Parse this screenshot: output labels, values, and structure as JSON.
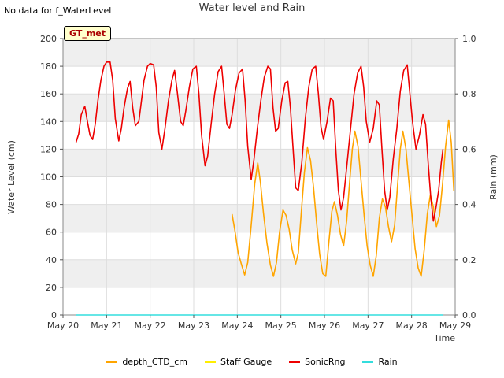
{
  "header": {
    "no_data_note": "No data for f_WaterLevel",
    "badge": "GT_met"
  },
  "chart_data": {
    "type": "line",
    "title": "Water level and Rain",
    "xlabel": "Time",
    "ylabel_left": "Water Level (cm)",
    "ylabel_right": "Rain (mm)",
    "x_ticks": [
      "May 20",
      "May 21",
      "May 22",
      "May 23",
      "May 24",
      "May 25",
      "May 26",
      "May 27",
      "May 28",
      "May 29"
    ],
    "xlim": [
      0,
      9
    ],
    "ylim_left": [
      0,
      200
    ],
    "ylim_right": [
      0,
      1.0
    ],
    "y_ticks_left": [
      "0",
      "20",
      "40",
      "60",
      "80",
      "100",
      "120",
      "140",
      "160",
      "180",
      "200"
    ],
    "y_ticks_right": [
      "0.0",
      "0.2",
      "0.4",
      "0.6",
      "0.8",
      "1.0"
    ],
    "legend_position": "bottom",
    "grid": true,
    "colors": {
      "bands": "#efefef",
      "grid": "#dddddd"
    },
    "series": [
      {
        "name": "depth_CTD_cm",
        "color": "#ffa500",
        "axis": "left",
        "points": [
          [
            3.88,
            73
          ],
          [
            3.95,
            60
          ],
          [
            4.02,
            45
          ],
          [
            4.1,
            36
          ],
          [
            4.17,
            29
          ],
          [
            4.24,
            38
          ],
          [
            4.32,
            65
          ],
          [
            4.4,
            95
          ],
          [
            4.47,
            110
          ],
          [
            4.53,
            96
          ],
          [
            4.6,
            74
          ],
          [
            4.68,
            52
          ],
          [
            4.76,
            36
          ],
          [
            4.83,
            28
          ],
          [
            4.9,
            38
          ],
          [
            4.97,
            60
          ],
          [
            5.05,
            76
          ],
          [
            5.12,
            72
          ],
          [
            5.19,
            62
          ],
          [
            5.26,
            47
          ],
          [
            5.34,
            37
          ],
          [
            5.4,
            45
          ],
          [
            5.47,
            75
          ],
          [
            5.54,
            103
          ],
          [
            5.61,
            121
          ],
          [
            5.68,
            112
          ],
          [
            5.75,
            92
          ],
          [
            5.82,
            67
          ],
          [
            5.89,
            44
          ],
          [
            5.96,
            30
          ],
          [
            6.03,
            28
          ],
          [
            6.1,
            52
          ],
          [
            6.17,
            75
          ],
          [
            6.23,
            82
          ],
          [
            6.3,
            72
          ],
          [
            6.37,
            58
          ],
          [
            6.44,
            50
          ],
          [
            6.51,
            68
          ],
          [
            6.58,
            97
          ],
          [
            6.64,
            120
          ],
          [
            6.7,
            133
          ],
          [
            6.77,
            122
          ],
          [
            6.84,
            97
          ],
          [
            6.91,
            72
          ],
          [
            6.98,
            50
          ],
          [
            7.05,
            36
          ],
          [
            7.12,
            28
          ],
          [
            7.19,
            43
          ],
          [
            7.26,
            70
          ],
          [
            7.33,
            84
          ],
          [
            7.4,
            78
          ],
          [
            7.47,
            64
          ],
          [
            7.54,
            53
          ],
          [
            7.61,
            65
          ],
          [
            7.68,
            95
          ],
          [
            7.74,
            120
          ],
          [
            7.8,
            133
          ],
          [
            7.87,
            120
          ],
          [
            7.94,
            96
          ],
          [
            8.01,
            72
          ],
          [
            8.08,
            48
          ],
          [
            8.15,
            34
          ],
          [
            8.22,
            28
          ],
          [
            8.29,
            47
          ],
          [
            8.36,
            73
          ],
          [
            8.43,
            87
          ],
          [
            8.5,
            78
          ],
          [
            8.57,
            64
          ],
          [
            8.64,
            72
          ],
          [
            8.71,
            95
          ],
          [
            8.78,
            122
          ],
          [
            8.85,
            141
          ],
          [
            8.91,
            125
          ],
          [
            8.97,
            90
          ]
        ]
      },
      {
        "name": "Staff Gauge",
        "color": "#ffee00",
        "axis": "left",
        "points": []
      },
      {
        "name": "SonicRng",
        "color": "#ee0000",
        "axis": "left",
        "points": [
          [
            0.3,
            125
          ],
          [
            0.36,
            131
          ],
          [
            0.42,
            145
          ],
          [
            0.5,
            151
          ],
          [
            0.56,
            140
          ],
          [
            0.62,
            130
          ],
          [
            0.68,
            127
          ],
          [
            0.74,
            138
          ],
          [
            0.8,
            155
          ],
          [
            0.87,
            170
          ],
          [
            0.94,
            180
          ],
          [
            1.0,
            183
          ],
          [
            1.08,
            183
          ],
          [
            1.14,
            170
          ],
          [
            1.2,
            142
          ],
          [
            1.28,
            126
          ],
          [
            1.34,
            135
          ],
          [
            1.4,
            150
          ],
          [
            1.48,
            164
          ],
          [
            1.54,
            169
          ],
          [
            1.6,
            150
          ],
          [
            1.66,
            137
          ],
          [
            1.74,
            140
          ],
          [
            1.8,
            155
          ],
          [
            1.86,
            170
          ],
          [
            1.94,
            180
          ],
          [
            2.0,
            182
          ],
          [
            2.08,
            181
          ],
          [
            2.14,
            165
          ],
          [
            2.2,
            132
          ],
          [
            2.27,
            120
          ],
          [
            2.34,
            135
          ],
          [
            2.42,
            155
          ],
          [
            2.5,
            170
          ],
          [
            2.56,
            177
          ],
          [
            2.62,
            162
          ],
          [
            2.7,
            140
          ],
          [
            2.76,
            137
          ],
          [
            2.82,
            148
          ],
          [
            2.9,
            165
          ],
          [
            2.98,
            178
          ],
          [
            3.06,
            180
          ],
          [
            3.12,
            160
          ],
          [
            3.18,
            130
          ],
          [
            3.26,
            108
          ],
          [
            3.32,
            115
          ],
          [
            3.4,
            138
          ],
          [
            3.48,
            160
          ],
          [
            3.56,
            176
          ],
          [
            3.64,
            180
          ],
          [
            3.7,
            160
          ],
          [
            3.76,
            138
          ],
          [
            3.82,
            135
          ],
          [
            3.88,
            145
          ],
          [
            3.96,
            163
          ],
          [
            4.04,
            175
          ],
          [
            4.12,
            178
          ],
          [
            4.18,
            155
          ],
          [
            4.24,
            122
          ],
          [
            4.32,
            98
          ],
          [
            4.38,
            112
          ],
          [
            4.46,
            135
          ],
          [
            4.54,
            155
          ],
          [
            4.62,
            172
          ],
          [
            4.7,
            180
          ],
          [
            4.76,
            178
          ],
          [
            4.82,
            150
          ],
          [
            4.88,
            133
          ],
          [
            4.94,
            135
          ],
          [
            5.02,
            155
          ],
          [
            5.1,
            168
          ],
          [
            5.16,
            169
          ],
          [
            5.22,
            150
          ],
          [
            5.28,
            120
          ],
          [
            5.34,
            92
          ],
          [
            5.4,
            90
          ],
          [
            5.48,
            110
          ],
          [
            5.56,
            142
          ],
          [
            5.64,
            165
          ],
          [
            5.72,
            178
          ],
          [
            5.8,
            180
          ],
          [
            5.86,
            160
          ],
          [
            5.92,
            136
          ],
          [
            5.98,
            127
          ],
          [
            6.06,
            140
          ],
          [
            6.14,
            157
          ],
          [
            6.2,
            155
          ],
          [
            6.26,
            120
          ],
          [
            6.32,
            90
          ],
          [
            6.38,
            76
          ],
          [
            6.44,
            85
          ],
          [
            6.52,
            110
          ],
          [
            6.6,
            135
          ],
          [
            6.68,
            160
          ],
          [
            6.76,
            175
          ],
          [
            6.84,
            180
          ],
          [
            6.9,
            165
          ],
          [
            6.96,
            140
          ],
          [
            7.04,
            125
          ],
          [
            7.12,
            135
          ],
          [
            7.2,
            155
          ],
          [
            7.26,
            152
          ],
          [
            7.32,
            120
          ],
          [
            7.38,
            90
          ],
          [
            7.44,
            76
          ],
          [
            7.5,
            85
          ],
          [
            7.58,
            113
          ],
          [
            7.66,
            135
          ],
          [
            7.74,
            162
          ],
          [
            7.82,
            177
          ],
          [
            7.9,
            181
          ],
          [
            7.96,
            160
          ],
          [
            8.02,
            140
          ],
          [
            8.1,
            120
          ],
          [
            8.18,
            130
          ],
          [
            8.26,
            145
          ],
          [
            8.32,
            138
          ],
          [
            8.38,
            110
          ],
          [
            8.44,
            85
          ],
          [
            8.5,
            68
          ],
          [
            8.56,
            78
          ],
          [
            8.62,
            90
          ],
          [
            8.68,
            110
          ],
          [
            8.72,
            120
          ]
        ]
      },
      {
        "name": "Rain",
        "color": "#33dddd",
        "axis": "right",
        "points": [
          [
            0.3,
            0
          ],
          [
            8.72,
            0
          ]
        ]
      }
    ]
  }
}
